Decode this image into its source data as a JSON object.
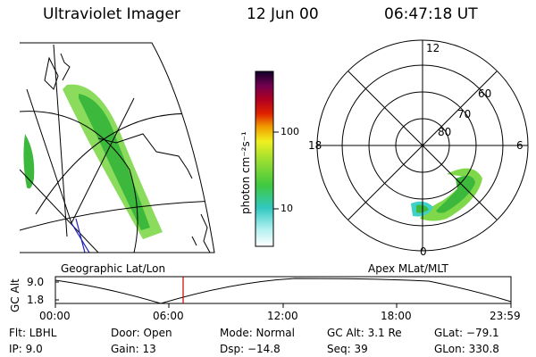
{
  "header": {
    "instrument": "Ultraviolet Imager",
    "date": "12 Jun 00",
    "time": "06:47:18 UT"
  },
  "colorbar": {
    "unit_label": "photon cm⁻²s⁻¹",
    "ticks": [
      "100",
      "10"
    ]
  },
  "geo_panel": {
    "caption": "Geographic Lat/Lon"
  },
  "polar_panel": {
    "caption": "Apex MLat/MLT",
    "mlt_labels": {
      "top": "12",
      "left": "18",
      "right": "6",
      "bottom": "0"
    },
    "lat_labels": [
      "60",
      "70",
      "80"
    ]
  },
  "timeline": {
    "ylabel": "GC Alt",
    "yticks": [
      "9.0",
      "1.8"
    ],
    "xticks": [
      "00:00",
      "06:00",
      "12:00",
      "18:00",
      "23:59"
    ],
    "marker_time": "06:47"
  },
  "info": {
    "flt": "Flt: LBHL",
    "ip": "IP:  9.0",
    "door": "Door: Open",
    "gain": "Gain: 13",
    "mode": "Mode: Normal",
    "dsp": "Dsp:  −14.8",
    "gcalt": "GC Alt: 3.1 Re",
    "seq": "Seq: 39",
    "glat": "GLat: −79.1",
    "glon": "GLon: 330.8"
  },
  "colors": {
    "aurora_high": "#3cb83c",
    "aurora_mid": "#7ed84a",
    "aurora_low": "#40d0c8",
    "marker": "#cc0000",
    "meridian": "#2020c0"
  }
}
